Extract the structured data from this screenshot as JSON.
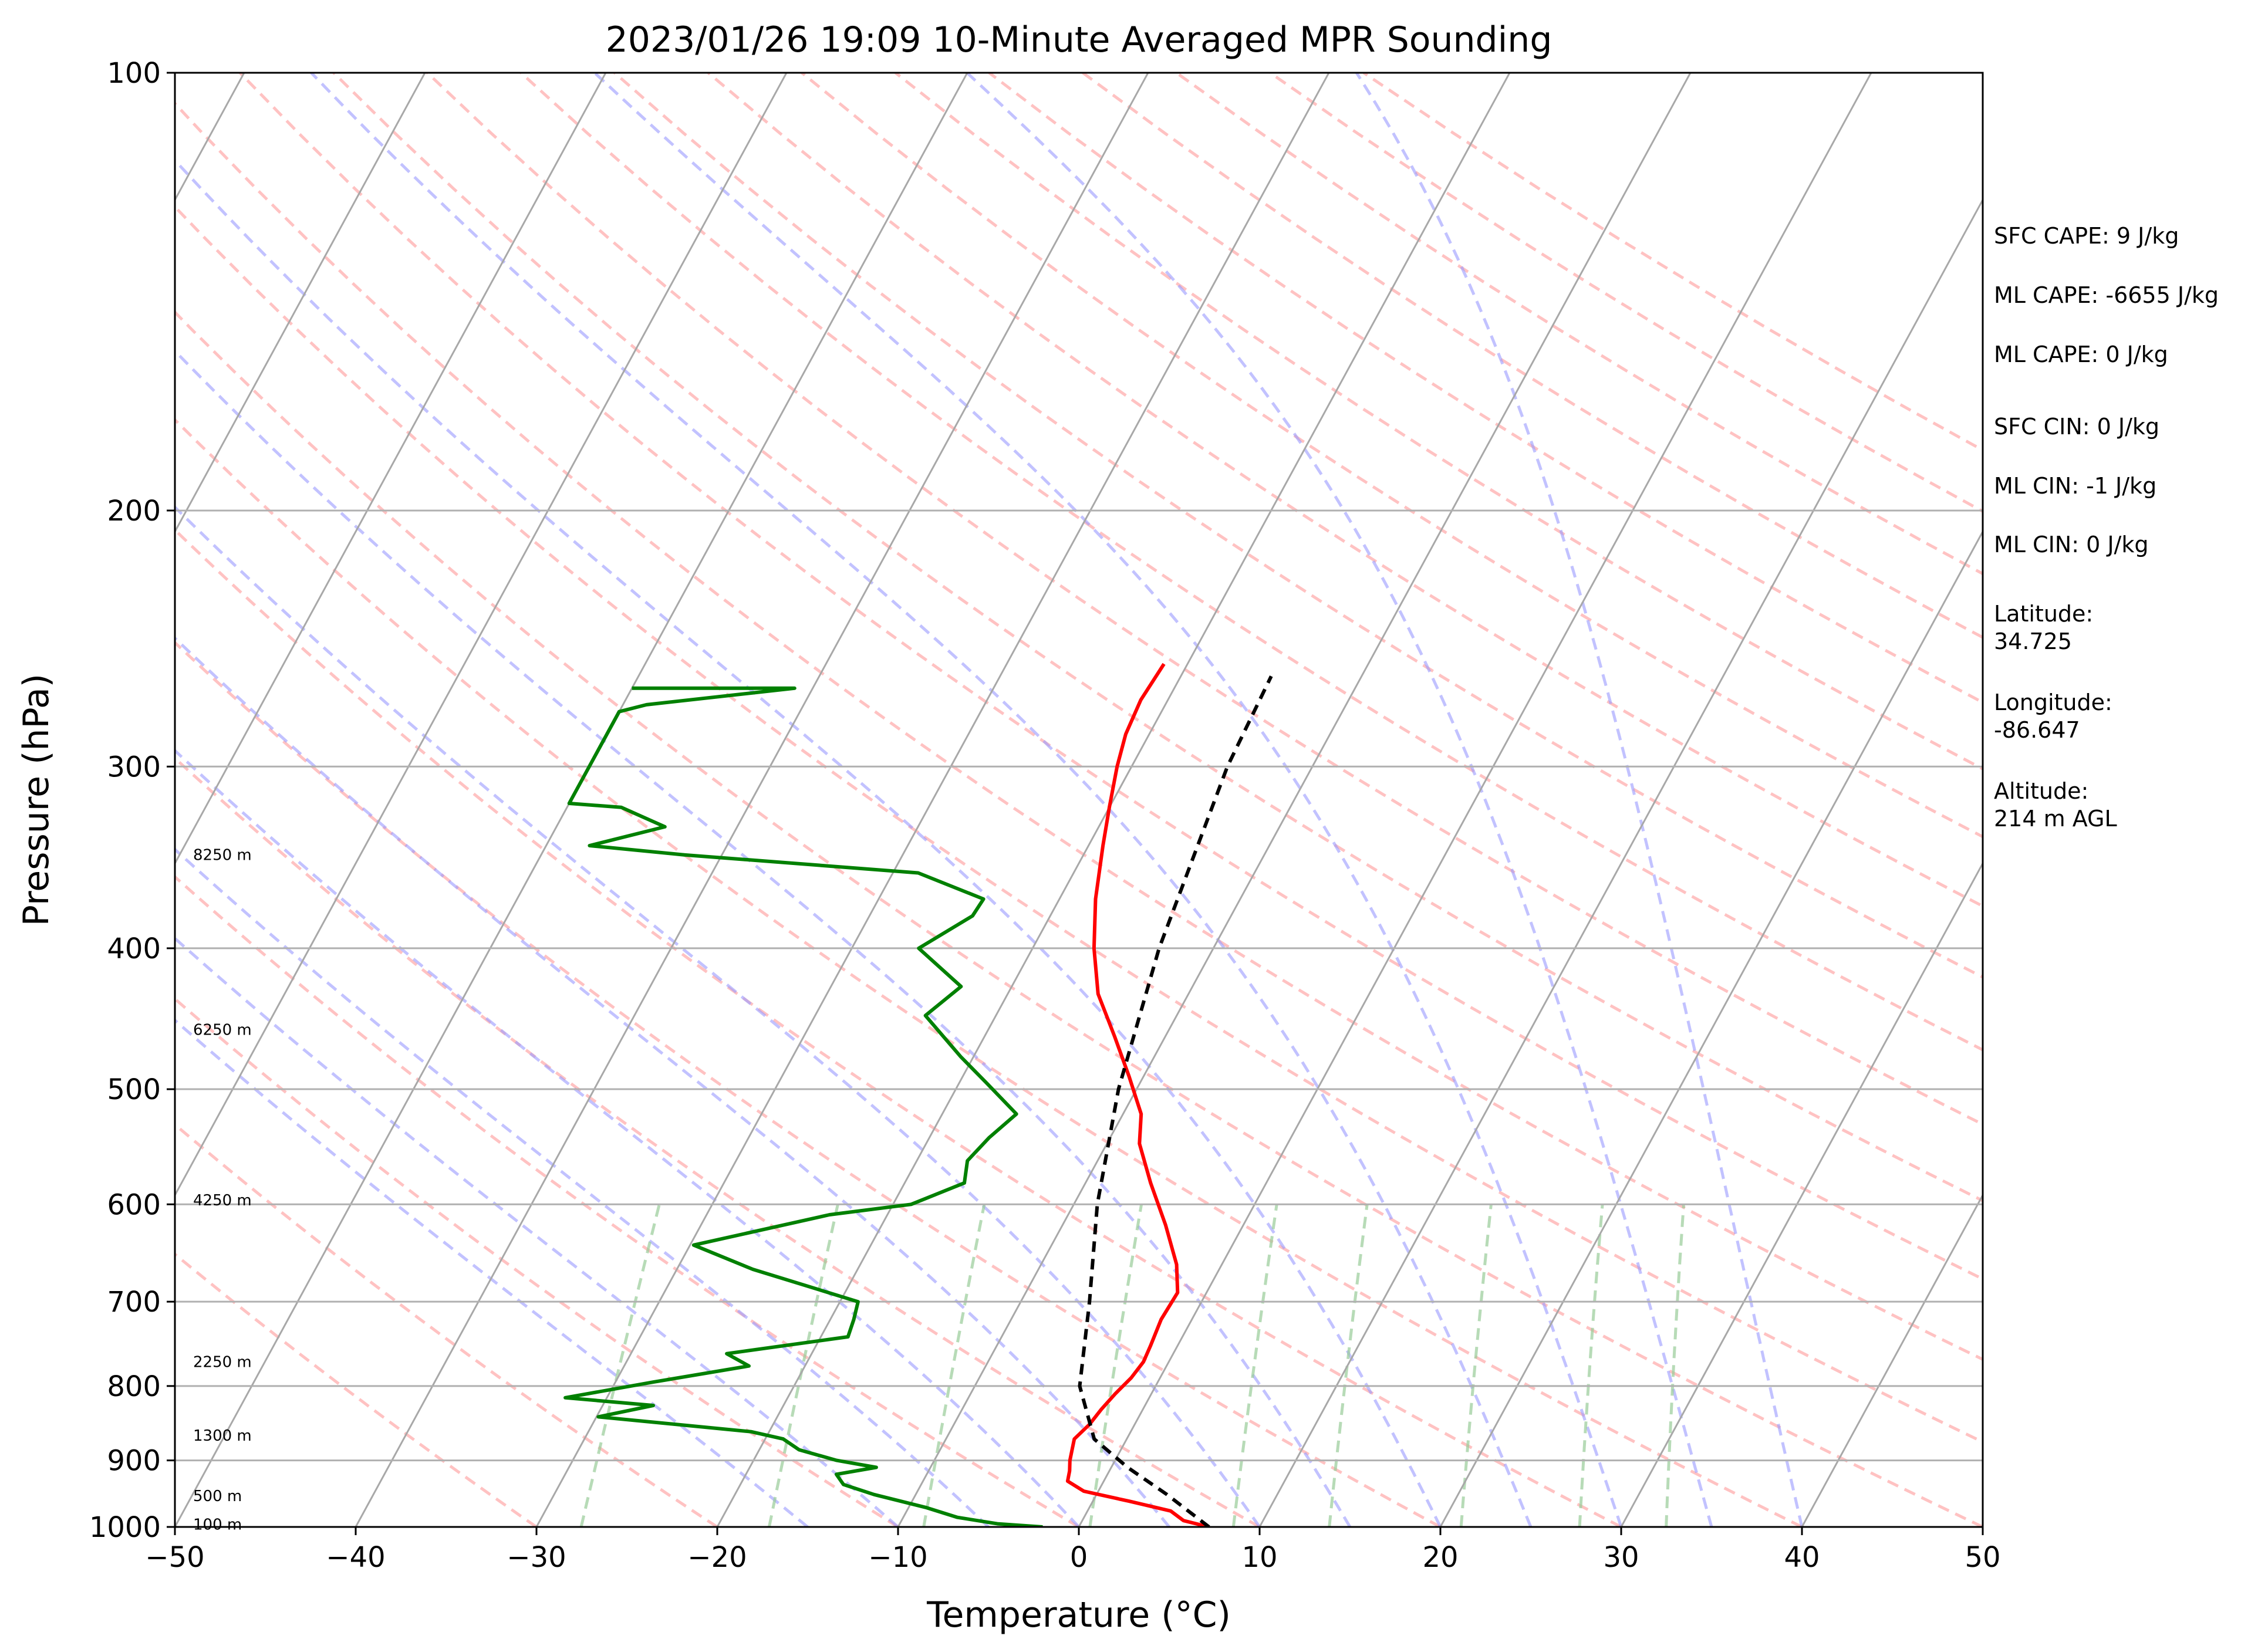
{
  "chart_data": {
    "type": "line",
    "subtype": "skew-T log-P sounding",
    "title": "2023/01/26 19:09 10-Minute Averaged MPR Sounding",
    "xlabel": "Temperature (°C)",
    "ylabel": "Pressure (hPa)",
    "xlim": [
      -50,
      50
    ],
    "ylim": [
      1000,
      100
    ],
    "y_scale": "log",
    "x_ticks": [
      "−50",
      "−40",
      "−30",
      "−20",
      "−10",
      "0",
      "10",
      "20",
      "30",
      "40",
      "50"
    ],
    "x_tick_values": [
      -50,
      -40,
      -30,
      -20,
      -10,
      0,
      10,
      20,
      30,
      40,
      50
    ],
    "y_ticks": [
      "100",
      "200",
      "300",
      "400",
      "500",
      "600",
      "700",
      "800",
      "900",
      "1000"
    ],
    "y_tick_values": [
      100,
      200,
      300,
      400,
      500,
      600,
      700,
      800,
      900,
      1000
    ],
    "grid": true,
    "series": [
      {
        "role": "temperature",
        "color": "#ff0000",
        "points": [
          [
            1000,
            7.2
          ],
          [
            990,
            5.6
          ],
          [
            975,
            4.6
          ],
          [
            960,
            2.0
          ],
          [
            945,
            -0.8
          ],
          [
            930,
            -2.0
          ],
          [
            915,
            -2.2
          ],
          [
            900,
            -2.5
          ],
          [
            885,
            -2.7
          ],
          [
            870,
            -2.9
          ],
          [
            850,
            -2.5
          ],
          [
            830,
            -2.3
          ],
          [
            810,
            -2.0
          ],
          [
            790,
            -1.6
          ],
          [
            770,
            -1.4
          ],
          [
            750,
            -1.5
          ],
          [
            720,
            -1.7
          ],
          [
            690,
            -1.6
          ],
          [
            660,
            -2.5
          ],
          [
            620,
            -4.3
          ],
          [
            580,
            -6.4
          ],
          [
            545,
            -8.2
          ],
          [
            520,
            -9.0
          ],
          [
            490,
            -10.8
          ],
          [
            460,
            -12.8
          ],
          [
            430,
            -15.0
          ],
          [
            400,
            -16.6
          ],
          [
            370,
            -18.0
          ],
          [
            340,
            -19.2
          ],
          [
            320,
            -20.0
          ],
          [
            300,
            -20.8
          ],
          [
            285,
            -21.3
          ],
          [
            270,
            -21.5
          ],
          [
            255,
            -21.3
          ]
        ]
      },
      {
        "role": "dewpoint",
        "color": "#008000",
        "points": [
          [
            1000,
            -2.0
          ],
          [
            995,
            -4.6
          ],
          [
            985,
            -7.0
          ],
          [
            970,
            -9.0
          ],
          [
            950,
            -12.3
          ],
          [
            935,
            -14.3
          ],
          [
            920,
            -15.0
          ],
          [
            910,
            -13.0
          ],
          [
            900,
            -15.4
          ],
          [
            885,
            -17.8
          ],
          [
            870,
            -19.0
          ],
          [
            860,
            -21.0
          ],
          [
            840,
            -29.9
          ],
          [
            825,
            -27.2
          ],
          [
            815,
            -32.3
          ],
          [
            795,
            -27.9
          ],
          [
            775,
            -23.1
          ],
          [
            760,
            -24.7
          ],
          [
            740,
            -18.5
          ],
          [
            720,
            -18.7
          ],
          [
            700,
            -19.0
          ],
          [
            665,
            -25.8
          ],
          [
            640,
            -29.8
          ],
          [
            610,
            -23.2
          ],
          [
            600,
            -19.0
          ],
          [
            580,
            -16.7
          ],
          [
            560,
            -17.2
          ],
          [
            540,
            -16.7
          ],
          [
            520,
            -15.9
          ],
          [
            495,
            -18.5
          ],
          [
            475,
            -20.7
          ],
          [
            445,
            -23.9
          ],
          [
            425,
            -22.8
          ],
          [
            400,
            -26.3
          ],
          [
            380,
            -24.3
          ],
          [
            370,
            -24.2
          ],
          [
            355,
            -28.6
          ],
          [
            345,
            -42.1
          ],
          [
            340,
            -47.6
          ],
          [
            330,
            -44.0
          ],
          [
            320,
            -47.0
          ],
          [
            318,
            -50.0
          ],
          [
            275,
            -50.0
          ],
          [
            272,
            -48.7
          ],
          [
            265,
            -41.0
          ],
          [
            265,
            -50.0
          ]
        ]
      },
      {
        "role": "parcel profile",
        "color": "#000000",
        "points": [
          [
            1000,
            7.2
          ],
          [
            950,
            3.9
          ],
          [
            910,
            0.9
          ],
          [
            870,
            -1.8
          ],
          [
            800,
            -4.2
          ],
          [
            700,
            -6.2
          ],
          [
            600,
            -8.7
          ],
          [
            500,
            -11.0
          ],
          [
            400,
            -13.0
          ],
          [
            300,
            -14.7
          ],
          [
            260,
            -15.0
          ]
        ]
      }
    ],
    "background_lines": {
      "isotherm_color": "#a8a8a8",
      "dry_adiabat_color": "#ff9999",
      "moist_adiabat_color": "#9999ff",
      "mixing_ratio_color": "#99cc99"
    },
    "height_labels": [
      "8250 m",
      "6250 m",
      "4250 m",
      "2250 m",
      "1300 m",
      "500 m",
      "100 m"
    ],
    "height_label_pressures": [
      345,
      455,
      596,
      770,
      865,
      952,
      996
    ],
    "indices": [
      "SFC CAPE: 9 J/kg",
      "ML CAPE: -6655 J/kg",
      "ML CAPE: 0 J/kg",
      "SFC CIN: 0 J/kg",
      "ML CIN: -1 J/kg",
      "ML CIN: 0 J/kg"
    ],
    "location": {
      "latitude_label": "Latitude:",
      "latitude": "34.725",
      "longitude_label": "Longitude:",
      "longitude": "-86.647",
      "altitude_label": "Altitude:",
      "altitude": "214 m AGL"
    }
  }
}
